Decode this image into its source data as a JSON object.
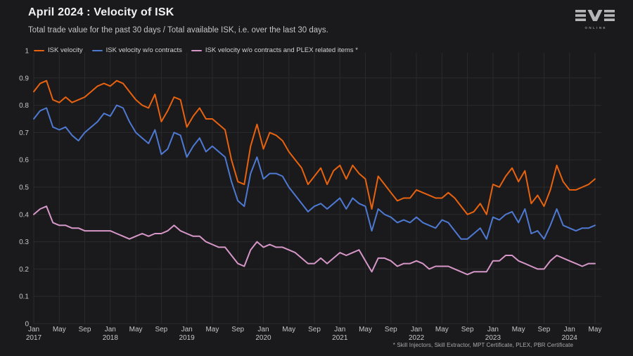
{
  "header": {
    "title": "April 2024 : Velocity of ISK",
    "subtitle": "Total trade value for the past 30 days / Total available ISK, i.e. over the last 30 days.",
    "logo": {
      "text": "EVE",
      "subtext": "ONLINE"
    }
  },
  "footnote": "* Skill Injectors, Skill Extractor, MPT Certificate, PLEX, PBR Certificate",
  "colors": {
    "background": "#1a1a1c",
    "grid": "#2a2a2c",
    "axis_text": "#c6c6c6",
    "title_text": "#f2f2f2",
    "subtitle_text": "#c4c4c4",
    "logo_silver": "#b6b6b6",
    "orange": "#e8620f",
    "blue": "#4e79d2",
    "pink": "#d697c8"
  },
  "chart_data": {
    "type": "line",
    "title": "April 2024 : Velocity of ISK",
    "xlabel": "",
    "ylabel": "",
    "x_start": "2017-01",
    "x_end": "2024-05",
    "x_interval": "monthly",
    "ylim": [
      0,
      1
    ],
    "grid": true,
    "legend_position": "top-left",
    "y_ticks": [
      "0",
      "0.1",
      "0.2",
      "0.3",
      "0.4",
      "0.5",
      "0.6",
      "0.7",
      "0.8",
      "0.9",
      "1"
    ],
    "x_ticks": [
      {
        "month": "Jan",
        "year": "2017"
      },
      {
        "month": "May"
      },
      {
        "month": "Sep"
      },
      {
        "month": "Jan",
        "year": "2018"
      },
      {
        "month": "May"
      },
      {
        "month": "Sep"
      },
      {
        "month": "Jan",
        "year": "2019"
      },
      {
        "month": "May"
      },
      {
        "month": "Sep"
      },
      {
        "month": "Jan",
        "year": "2020"
      },
      {
        "month": "May"
      },
      {
        "month": "Sep"
      },
      {
        "month": "Jan",
        "year": "2021"
      },
      {
        "month": "May"
      },
      {
        "month": "Sep"
      },
      {
        "month": "Jan",
        "year": "2022"
      },
      {
        "month": "May"
      },
      {
        "month": "Sep"
      },
      {
        "month": "Jan",
        "year": "2023"
      },
      {
        "month": "May"
      },
      {
        "month": "Sep"
      },
      {
        "month": "Jan",
        "year": "2024"
      },
      {
        "month": "May"
      }
    ],
    "series": [
      {
        "name": "ISK velocity",
        "color": "#e8620f",
        "values": [
          0.85,
          0.88,
          0.89,
          0.82,
          0.81,
          0.83,
          0.81,
          0.82,
          0.83,
          0.85,
          0.87,
          0.88,
          0.87,
          0.89,
          0.88,
          0.85,
          0.82,
          0.8,
          0.79,
          0.84,
          0.74,
          0.78,
          0.83,
          0.82,
          0.72,
          0.76,
          0.79,
          0.75,
          0.75,
          0.73,
          0.71,
          0.6,
          0.52,
          0.51,
          0.65,
          0.73,
          0.64,
          0.7,
          0.69,
          0.67,
          0.63,
          0.6,
          0.57,
          0.51,
          0.54,
          0.57,
          0.51,
          0.56,
          0.58,
          0.53,
          0.58,
          0.55,
          0.53,
          0.42,
          0.54,
          0.51,
          0.48,
          0.45,
          0.46,
          0.46,
          0.49,
          0.48,
          0.47,
          0.46,
          0.46,
          0.48,
          0.46,
          0.43,
          0.4,
          0.41,
          0.44,
          0.4,
          0.51,
          0.5,
          0.54,
          0.57,
          0.52,
          0.56,
          0.44,
          0.47,
          0.43,
          0.49,
          0.58,
          0.52,
          0.49,
          0.49,
          0.5,
          0.51,
          0.53
        ]
      },
      {
        "name": "ISK velocity w/o contracts",
        "color": "#4e79d2",
        "values": [
          0.75,
          0.78,
          0.79,
          0.72,
          0.71,
          0.72,
          0.69,
          0.67,
          0.7,
          0.72,
          0.74,
          0.77,
          0.76,
          0.8,
          0.79,
          0.74,
          0.7,
          0.68,
          0.66,
          0.71,
          0.62,
          0.64,
          0.7,
          0.69,
          0.61,
          0.65,
          0.68,
          0.63,
          0.65,
          0.63,
          0.61,
          0.52,
          0.45,
          0.43,
          0.55,
          0.61,
          0.53,
          0.55,
          0.55,
          0.54,
          0.5,
          0.47,
          0.44,
          0.41,
          0.43,
          0.44,
          0.42,
          0.44,
          0.46,
          0.42,
          0.46,
          0.44,
          0.43,
          0.34,
          0.42,
          0.4,
          0.39,
          0.37,
          0.38,
          0.37,
          0.39,
          0.37,
          0.36,
          0.35,
          0.38,
          0.37,
          0.34,
          0.31,
          0.31,
          0.33,
          0.35,
          0.31,
          0.39,
          0.38,
          0.4,
          0.41,
          0.37,
          0.42,
          0.33,
          0.34,
          0.31,
          0.36,
          0.42,
          0.36,
          0.35,
          0.34,
          0.35,
          0.35,
          0.36
        ]
      },
      {
        "name": "ISK velocity w/o contracts and PLEX related items *",
        "color": "#d697c8",
        "values": [
          0.4,
          0.42,
          0.43,
          0.37,
          0.36,
          0.36,
          0.35,
          0.35,
          0.34,
          0.34,
          0.34,
          0.34,
          0.34,
          0.33,
          0.32,
          0.31,
          0.32,
          0.33,
          0.32,
          0.33,
          0.33,
          0.34,
          0.36,
          0.34,
          0.33,
          0.32,
          0.32,
          0.3,
          0.29,
          0.28,
          0.28,
          0.25,
          0.22,
          0.21,
          0.27,
          0.3,
          0.28,
          0.29,
          0.28,
          0.28,
          0.27,
          0.26,
          0.24,
          0.22,
          0.22,
          0.24,
          0.22,
          0.24,
          0.26,
          0.25,
          0.26,
          0.27,
          0.23,
          0.19,
          0.24,
          0.24,
          0.23,
          0.21,
          0.22,
          0.22,
          0.23,
          0.22,
          0.2,
          0.21,
          0.21,
          0.21,
          0.2,
          0.19,
          0.18,
          0.19,
          0.19,
          0.19,
          0.23,
          0.23,
          0.25,
          0.25,
          0.23,
          0.22,
          0.21,
          0.2,
          0.2,
          0.23,
          0.25,
          0.24,
          0.23,
          0.22,
          0.21,
          0.22,
          0.22
        ]
      }
    ]
  }
}
